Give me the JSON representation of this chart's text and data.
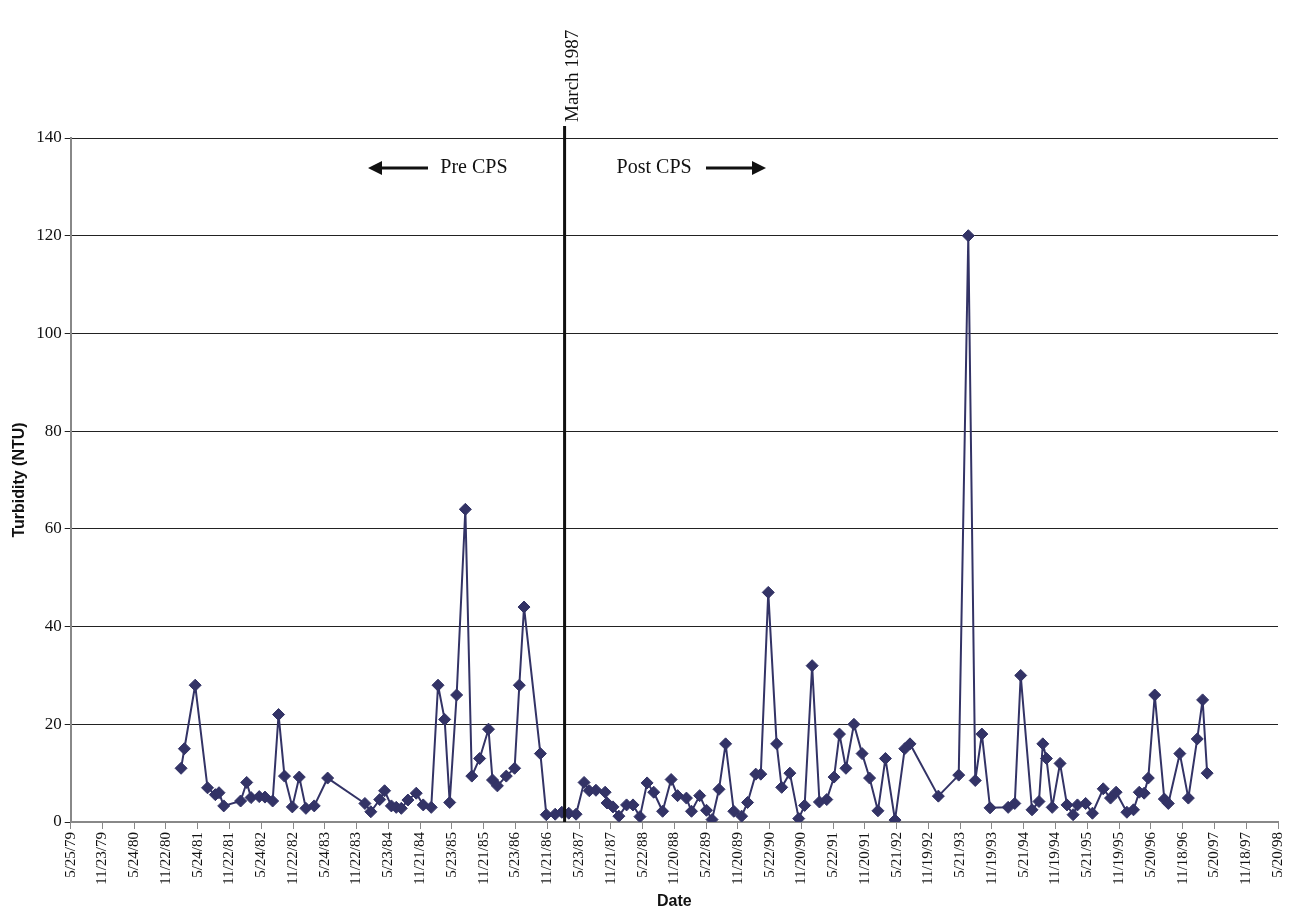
{
  "chart_data": {
    "type": "line",
    "xlabel": "Date",
    "ylabel": "Turbidity (NTU)",
    "x": [
      "1981-02-17",
      "1981-03-08",
      "1981-05-09",
      "1981-07-19",
      "1981-09-02",
      "1981-09-23",
      "1981-10-20",
      "1982-01-25",
      "1982-03-01",
      "1982-03-26",
      "1982-05-12",
      "1982-06-14",
      "1982-07-28",
      "1982-08-31",
      "1982-10-04",
      "1982-11-18",
      "1982-12-28",
      "1983-02-04",
      "1983-03-24",
      "1983-06-09",
      "1984-01-09",
      "1984-02-12",
      "1984-04-03",
      "1984-05-01",
      "1984-06-09",
      "1984-07-07",
      "1984-08-05",
      "1984-09-12",
      "1984-10-30",
      "1984-12-09",
      "1985-01-24",
      "1985-03-04",
      "1985-04-11",
      "1985-05-10",
      "1985-06-19",
      "1985-08-08",
      "1985-09-14",
      "1985-10-29",
      "1985-12-19",
      "1986-01-11",
      "1986-02-08",
      "1986-03-31",
      "1986-05-18",
      "1986-06-14",
      "1986-07-11",
      "1986-10-13",
      "1986-11-16",
      "1987-01-06",
      "1987-02-13",
      "1987-03-25",
      "1987-05-06",
      "1987-06-21",
      "1987-07-21",
      "1987-08-28",
      "1987-10-20",
      "1987-10-31",
      "1987-12-04",
      "1988-01-07",
      "1988-02-20",
      "1988-03-28",
      "1988-05-07",
      "1988-06-17",
      "1988-07-25",
      "1988-09-14",
      "1988-11-02",
      "1988-12-09",
      "1989-01-29",
      "1989-02-27",
      "1989-04-15",
      "1989-05-24",
      "1989-06-25",
      "1989-08-04",
      "1989-09-11",
      "1989-10-28",
      "1989-12-12",
      "1990-01-15",
      "1990-03-03",
      "1990-04-01",
      "1990-05-14",
      "1990-07-01",
      "1990-07-30",
      "1990-09-15",
      "1990-11-05",
      "1990-12-09",
      "1991-01-21",
      "1991-03-04",
      "1991-04-15",
      "1991-05-27",
      "1991-06-27",
      "1991-08-03",
      "1991-09-18",
      "1991-11-04",
      "1991-12-17",
      "1992-02-03",
      "1992-03-17",
      "1992-05-11",
      "1992-07-06",
      "1992-08-05",
      "1993-01-15",
      "1993-05-12",
      "1993-07-06",
      "1993-08-15",
      "1993-09-22",
      "1993-11-08",
      "1994-02-20",
      "1994-03-30",
      "1994-05-03",
      "1994-07-07",
      "1994-08-16",
      "1994-09-07",
      "1994-09-28",
      "1994-10-31",
      "1994-12-15",
      "1995-01-24",
      "1995-02-28",
      "1995-03-25",
      "1995-05-11",
      "1995-06-19",
      "1995-08-20",
      "1995-10-01",
      "1995-11-02",
      "1996-01-03",
      "1996-02-10",
      "1996-03-14",
      "1996-04-11",
      "1996-05-05",
      "1996-06-11",
      "1996-08-05",
      "1996-08-28",
      "1996-11-02",
      "1996-12-21",
      "1997-02-10",
      "1997-03-13",
      "1997-04-08"
    ],
    "values": [
      11,
      15,
      28,
      7,
      5.6,
      6,
      3.3,
      4.3,
      8.1,
      5,
      5.2,
      5.1,
      4.3,
      22,
      9.4,
      3.1,
      9.2,
      2.8,
      3.3,
      9,
      3.8,
      2.1,
      4.6,
      6.4,
      3.3,
      3,
      2.8,
      4.5,
      5.9,
      3.5,
      3,
      28,
      21,
      4,
      26,
      64,
      9.4,
      13,
      19,
      8.6,
      7.4,
      9.4,
      11,
      28,
      44,
      14,
      1.5,
      1.6,
      2,
      1.8,
      1.6,
      8.1,
      6.4,
      6.5,
      6.1,
      3.9,
      3.1,
      1.2,
      3.5,
      3.5,
      1.1,
      8,
      6.1,
      2.2,
      8.7,
      5.4,
      4.9,
      2.2,
      5.4,
      2.4,
      0.5,
      6.7,
      16,
      2.2,
      1.2,
      4,
      9.8,
      9.8,
      47,
      16,
      7.1,
      10,
      0.7,
      3.4,
      32,
      4.1,
      4.6,
      9.2,
      18,
      11,
      20,
      14,
      9,
      2.3,
      13,
      0.4,
      15,
      16,
      5.3,
      9.6,
      120,
      8.5,
      18,
      2.9,
      3,
      3.8,
      30,
      2.5,
      4.2,
      16,
      13,
      3,
      12,
      3.5,
      1.5,
      3.5,
      3.8,
      1.8,
      6.8,
      4.9,
      6.1,
      2,
      2.5,
      6.1,
      5.9,
      9,
      26,
      4.7,
      3.8,
      14,
      4.9,
      17,
      25,
      10
    ],
    "color": "#333366",
    "marker": "diamond",
    "grid": "y",
    "xlim": [
      "1979-05-25",
      "1998-05-20"
    ],
    "xticks": [
      {
        "value": "1979-05-25",
        "label": "5/25/79"
      },
      {
        "value": "1979-11-23",
        "label": "11/23/79"
      },
      {
        "value": "1980-05-24",
        "label": "5/24/80"
      },
      {
        "value": "1980-11-22",
        "label": "11/22/80"
      },
      {
        "value": "1981-05-24",
        "label": "5/24/81"
      },
      {
        "value": "1981-11-22",
        "label": "11/22/81"
      },
      {
        "value": "1982-05-24",
        "label": "5/24/82"
      },
      {
        "value": "1982-11-22",
        "label": "11/22/82"
      },
      {
        "value": "1983-05-24",
        "label": "5/24/83"
      },
      {
        "value": "1983-11-22",
        "label": "11/22/83"
      },
      {
        "value": "1984-05-23",
        "label": "5/23/84"
      },
      {
        "value": "1984-11-21",
        "label": "11/21/84"
      },
      {
        "value": "1985-05-23",
        "label": "5/23/85"
      },
      {
        "value": "1985-11-21",
        "label": "11/21/85"
      },
      {
        "value": "1986-05-23",
        "label": "5/23/86"
      },
      {
        "value": "1986-11-21",
        "label": "11/21/86"
      },
      {
        "value": "1987-05-23",
        "label": "5/23/87"
      },
      {
        "value": "1987-11-21",
        "label": "11/21/87"
      },
      {
        "value": "1988-05-22",
        "label": "5/22/88"
      },
      {
        "value": "1988-11-20",
        "label": "11/20/88"
      },
      {
        "value": "1989-05-22",
        "label": "5/22/89"
      },
      {
        "value": "1989-11-20",
        "label": "11/20/89"
      },
      {
        "value": "1990-05-22",
        "label": "5/22/90"
      },
      {
        "value": "1990-11-20",
        "label": "11/20/90"
      },
      {
        "value": "1991-05-22",
        "label": "5/22/91"
      },
      {
        "value": "1991-11-20",
        "label": "11/20/91"
      },
      {
        "value": "1992-05-21",
        "label": "5/21/92"
      },
      {
        "value": "1992-11-19",
        "label": "11/19/92"
      },
      {
        "value": "1993-05-21",
        "label": "5/21/93"
      },
      {
        "value": "1993-11-19",
        "label": "11/19/93"
      },
      {
        "value": "1994-05-21",
        "label": "5/21/94"
      },
      {
        "value": "1994-11-19",
        "label": "11/19/94"
      },
      {
        "value": "1995-05-21",
        "label": "5/21/95"
      },
      {
        "value": "1995-11-19",
        "label": "11/19/95"
      },
      {
        "value": "1996-05-20",
        "label": "5/20/96"
      },
      {
        "value": "1996-11-18",
        "label": "11/18/96"
      },
      {
        "value": "1997-05-20",
        "label": "5/20/97"
      },
      {
        "value": "1997-11-18",
        "label": "11/18/97"
      },
      {
        "value": "1998-05-20",
        "label": "5/20/98"
      }
    ],
    "ylim": [
      0,
      140
    ],
    "yticks": [
      0,
      20,
      40,
      60,
      80,
      100,
      120,
      140
    ],
    "ref_lines": [
      {
        "axis": "x",
        "value": "1987-03",
        "label": "March 1987",
        "color": "#111111"
      }
    ],
    "annotations": [
      "Pre CPS",
      "Post CPS"
    ]
  }
}
